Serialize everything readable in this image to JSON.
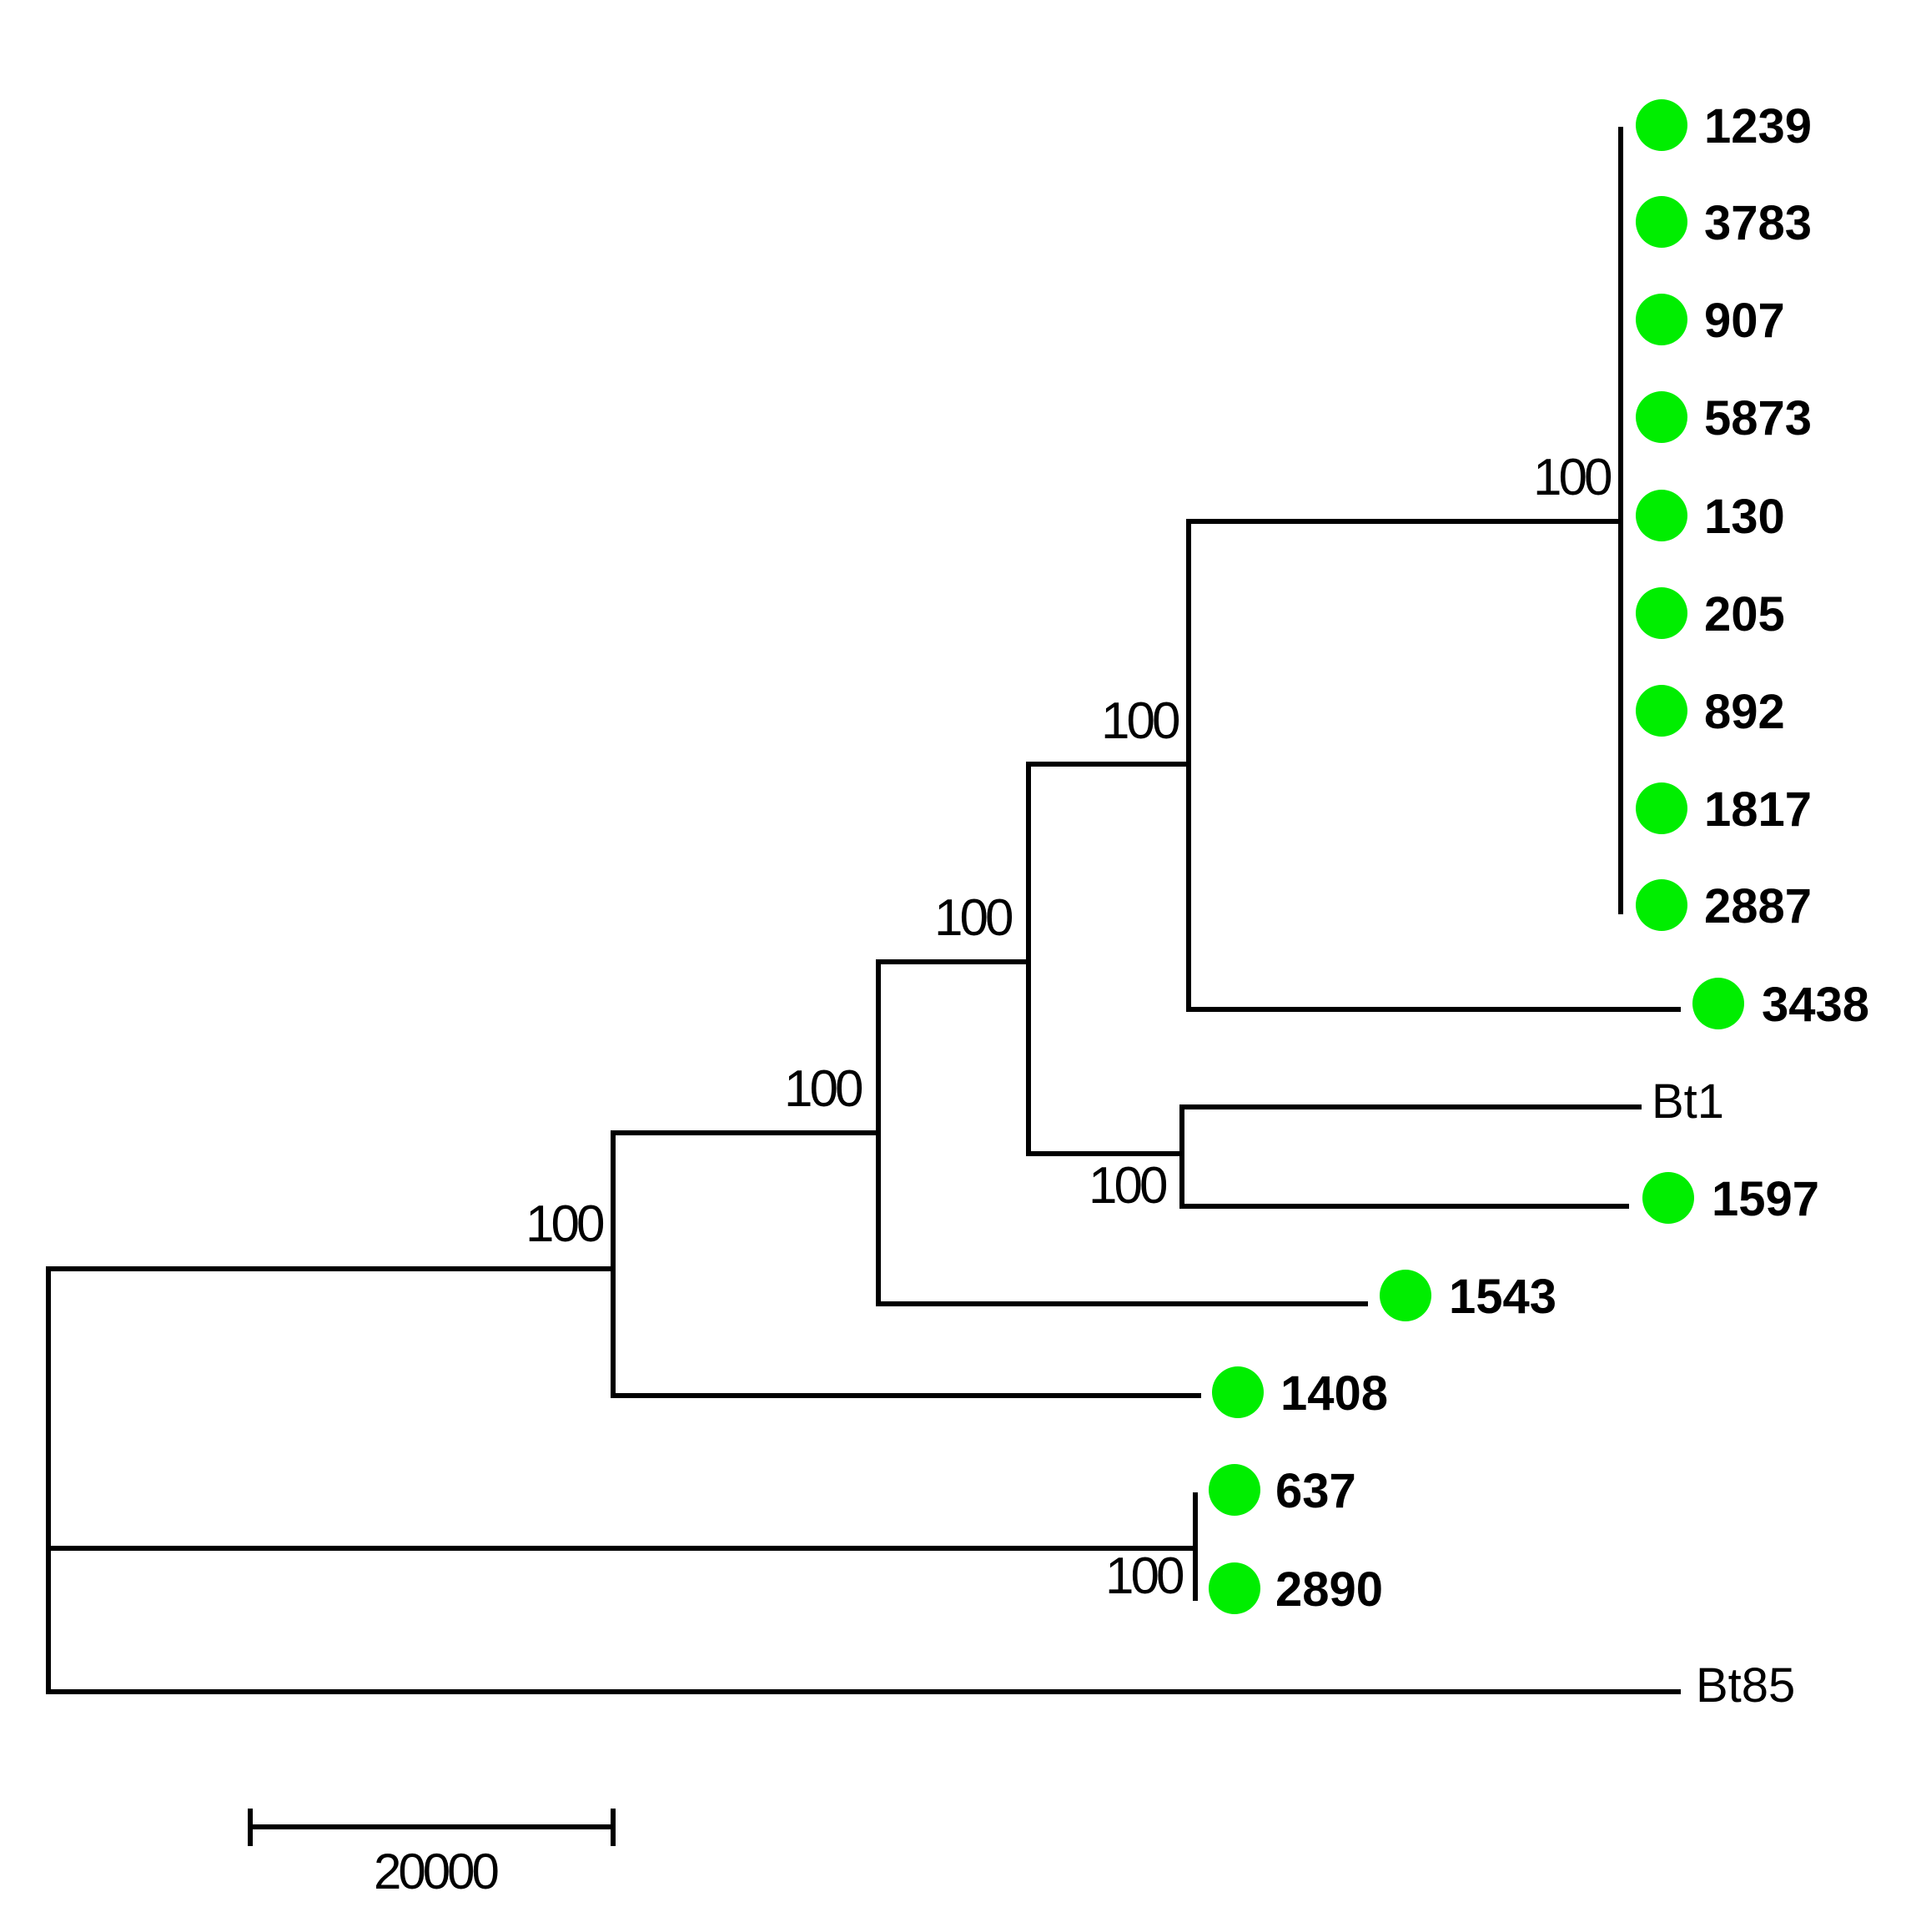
{
  "marker_color": "#00ee00",
  "line_color": "#000000",
  "leaves": [
    {
      "id": "l1239",
      "label": "1239",
      "marked": true
    },
    {
      "id": "l3783",
      "label": "3783",
      "marked": true
    },
    {
      "id": "l907",
      "label": "907",
      "marked": true
    },
    {
      "id": "l5873",
      "label": "5873",
      "marked": true
    },
    {
      "id": "l130",
      "label": "130",
      "marked": true
    },
    {
      "id": "l205",
      "label": "205",
      "marked": true
    },
    {
      "id": "l892",
      "label": "892",
      "marked": true
    },
    {
      "id": "l1817",
      "label": "1817",
      "marked": true
    },
    {
      "id": "l2887",
      "label": "2887",
      "marked": true
    },
    {
      "id": "l3438",
      "label": "3438",
      "marked": true
    },
    {
      "id": "lBt1",
      "label": "Bt1",
      "marked": false
    },
    {
      "id": "l1597",
      "label": "1597",
      "marked": true
    },
    {
      "id": "l1543",
      "label": "1543",
      "marked": true
    },
    {
      "id": "l1408",
      "label": "1408",
      "marked": true
    },
    {
      "id": "l637",
      "label": "637",
      "marked": true
    },
    {
      "id": "l2890",
      "label": "2890",
      "marked": true
    },
    {
      "id": "lBt85",
      "label": "Bt85",
      "marked": false
    }
  ],
  "bootstrap_values": [
    "100",
    "100",
    "100",
    "100",
    "100",
    "100",
    "100"
  ],
  "scale_bar": {
    "label": "20000"
  }
}
